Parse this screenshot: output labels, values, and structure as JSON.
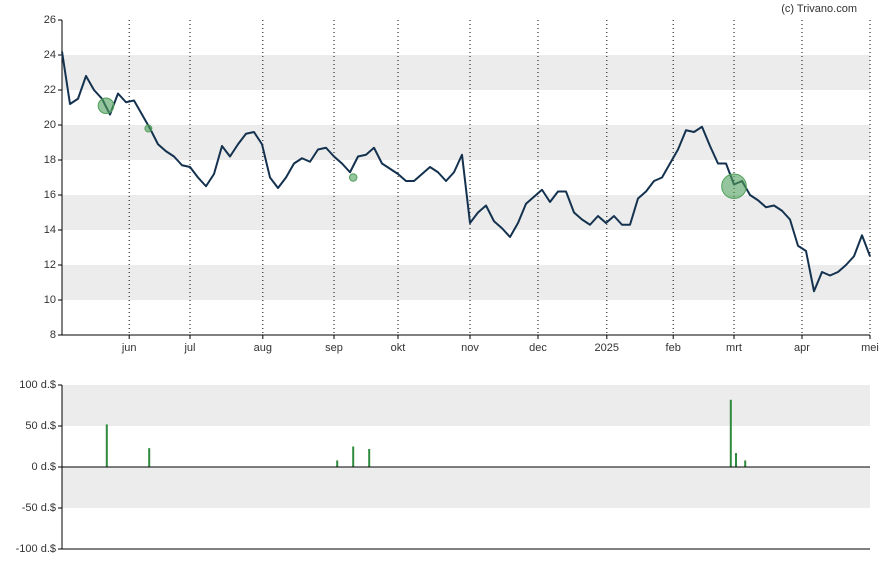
{
  "chart_data": [
    {
      "type": "line",
      "annotation": "(c) Trivano.com",
      "x": [
        0,
        1,
        2,
        3,
        4,
        5,
        6,
        7,
        8,
        9,
        10,
        11,
        12,
        13,
        14,
        15,
        16,
        17,
        18,
        19,
        20,
        21,
        22,
        23,
        24,
        25,
        26,
        27,
        28,
        29,
        30,
        31,
        32,
        33,
        34,
        35,
        36,
        37,
        38,
        39,
        40,
        41,
        42,
        43,
        44,
        45,
        46,
        47,
        48,
        49,
        50,
        51,
        52,
        53,
        54,
        55,
        56,
        57,
        58,
        59,
        60,
        61,
        62,
        63,
        64,
        65,
        66,
        67,
        68,
        69,
        70,
        71,
        72,
        73,
        74,
        75,
        76,
        77,
        78,
        79,
        80,
        81,
        82,
        83,
        84,
        85,
        86,
        87,
        88,
        89,
        90,
        91,
        92,
        93,
        94,
        95,
        96,
        97,
        98,
        99,
        100,
        101
      ],
      "series": [
        {
          "color": "#14324f",
          "values": [
            24.2,
            21.2,
            21.5,
            22.8,
            22.0,
            21.5,
            20.6,
            21.8,
            21.3,
            21.4,
            20.6,
            19.8,
            18.9,
            18.5,
            18.2,
            17.7,
            17.6,
            17.0,
            16.5,
            17.2,
            18.8,
            18.2,
            18.9,
            19.5,
            19.6,
            18.9,
            17.0,
            16.4,
            17.0,
            17.8,
            18.1,
            17.9,
            18.6,
            18.7,
            18.2,
            17.8,
            17.3,
            18.2,
            18.3,
            18.7,
            17.8,
            17.5,
            17.2,
            16.8,
            16.8,
            17.2,
            17.6,
            17.3,
            16.8,
            17.3,
            18.3,
            14.4,
            15.0,
            15.4,
            14.5,
            14.1,
            13.6,
            14.4,
            15.5,
            15.9,
            16.3,
            15.6,
            16.2,
            16.2,
            15.0,
            14.6,
            14.3,
            14.8,
            14.4,
            14.8,
            14.3,
            14.3,
            15.8,
            16.2,
            16.8,
            17.0,
            17.8,
            18.6,
            19.7,
            19.6,
            19.9,
            18.8,
            17.8,
            17.8,
            16.6,
            16.8,
            16.0,
            15.7,
            15.3,
            15.4,
            15.1,
            14.6,
            13.1,
            12.8,
            10.5,
            11.6,
            11.4,
            11.6,
            12.0,
            12.5,
            13.7,
            12.5
          ]
        }
      ],
      "bubbles": {
        "color": "#4f9f5a",
        "x": [
          5.5,
          10.8,
          36.4,
          84
        ],
        "values": [
          21.1,
          19.8,
          17.0,
          16.5
        ],
        "sizes": [
          52,
          23,
          25,
          82
        ]
      },
      "xlim": [
        0,
        101
      ],
      "xticks": [
        {
          "value": 8.4,
          "label": "jun"
        },
        {
          "value": 16,
          "label": "jul"
        },
        {
          "value": 25.1,
          "label": "aug"
        },
        {
          "value": 34,
          "label": "sep"
        },
        {
          "value": 42,
          "label": "okt"
        },
        {
          "value": 51,
          "label": "nov"
        },
        {
          "value": 59.5,
          "label": "dec"
        },
        {
          "value": 68.1,
          "label": "2025"
        },
        {
          "value": 76.4,
          "label": "feb"
        },
        {
          "value": 84,
          "label": "mrt"
        },
        {
          "value": 92.5,
          "label": "apr"
        },
        {
          "value": 101,
          "label": "mei"
        }
      ],
      "ylim": [
        8,
        26
      ],
      "yticks": [
        8,
        10,
        12,
        14,
        16,
        18,
        20,
        22,
        24,
        26
      ],
      "banded_grid": true
    },
    {
      "type": "bar",
      "color": "#2e8b3e",
      "x": [
        5.6,
        10.9,
        34.4,
        36.4,
        38.4,
        83.6,
        84.25,
        85.4
      ],
      "values": [
        52,
        23,
        8,
        25,
        22,
        82,
        17,
        8
      ],
      "xlim": [
        0,
        101
      ],
      "ylim": [
        -100,
        100
      ],
      "yticks": [
        {
          "value": -100,
          "label": "-100 d.$"
        },
        {
          "value": -50,
          "label": "-50 d.$"
        },
        {
          "value": 0,
          "label": "0 d.$"
        },
        {
          "value": 50,
          "label": "50 d.$"
        },
        {
          "value": 100,
          "label": "100 d.$"
        }
      ],
      "banded_grid": true
    }
  ]
}
